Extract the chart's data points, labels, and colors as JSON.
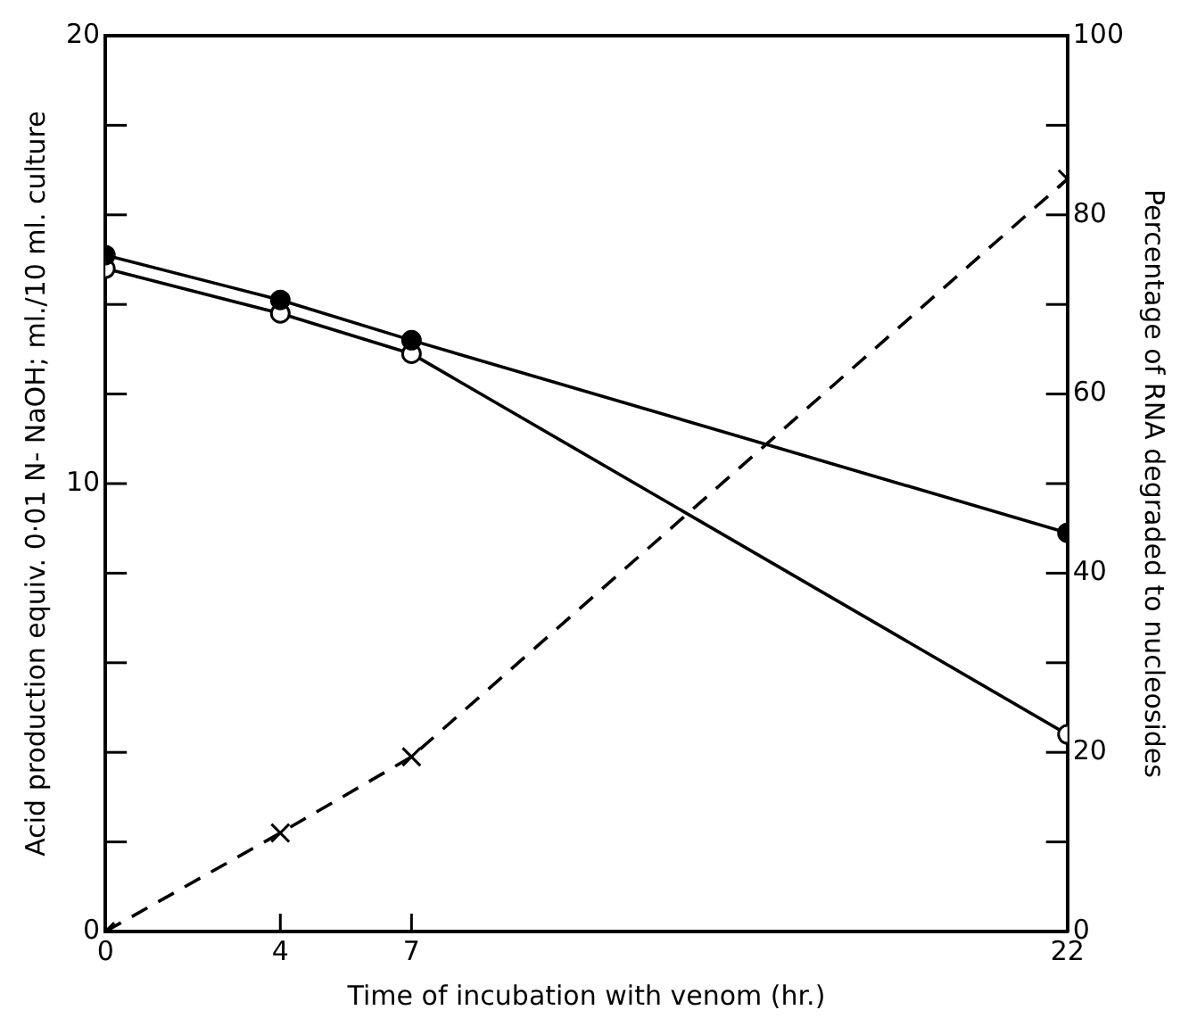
{
  "chart_data": {
    "type": "line",
    "xlabel": "Time of incubation with venom (hr.)",
    "ylabel": "Acid production equiv. 0·01 N- NaOH; ml./10 ml. culture",
    "y2label": "Percentage of RNA degraded to nucleosides",
    "x": [
      0,
      4,
      7,
      22
    ],
    "xlim": [
      0,
      22
    ],
    "xticks": [
      0,
      4,
      7,
      22
    ],
    "ylim": [
      0,
      20
    ],
    "yticks": [
      0,
      {
        "value": 2,
        "label": null
      },
      {
        "value": 4,
        "label": null
      },
      {
        "value": 6,
        "label": null
      },
      {
        "value": 8,
        "label": null
      },
      10,
      {
        "value": 12,
        "label": null
      },
      {
        "value": 14,
        "label": null
      },
      {
        "value": 16,
        "label": null
      },
      {
        "value": 18,
        "label": null
      },
      20
    ],
    "y2lim": [
      0,
      100
    ],
    "y2ticks": [
      0,
      {
        "value": 10,
        "label": null
      },
      20,
      {
        "value": 30,
        "label": null
      },
      40,
      {
        "value": 50,
        "label": null
      },
      60,
      {
        "value": 70,
        "label": null
      },
      80,
      {
        "value": 90,
        "label": null
      },
      100
    ],
    "series": [
      {
        "color": "#000000",
        "values": [
          15.1,
          14.1,
          13.2,
          8.9
        ],
        "marker": "circle",
        "line_style": "solid"
      },
      {
        "color": "#000000",
        "values": [
          14.8,
          13.8,
          12.9,
          4.4
        ],
        "marker": "circle",
        "colors": [
          "#ffffff",
          "#ffffff",
          "#ffffff",
          "#ffffff"
        ],
        "line_style": "solid"
      },
      {
        "color": "#000000",
        "values": [
          0,
          11,
          19.5,
          84
        ],
        "marker": "cross",
        "line_style": "dashed",
        "axis": "y2"
      }
    ],
    "grid": false,
    "legend": false
  }
}
